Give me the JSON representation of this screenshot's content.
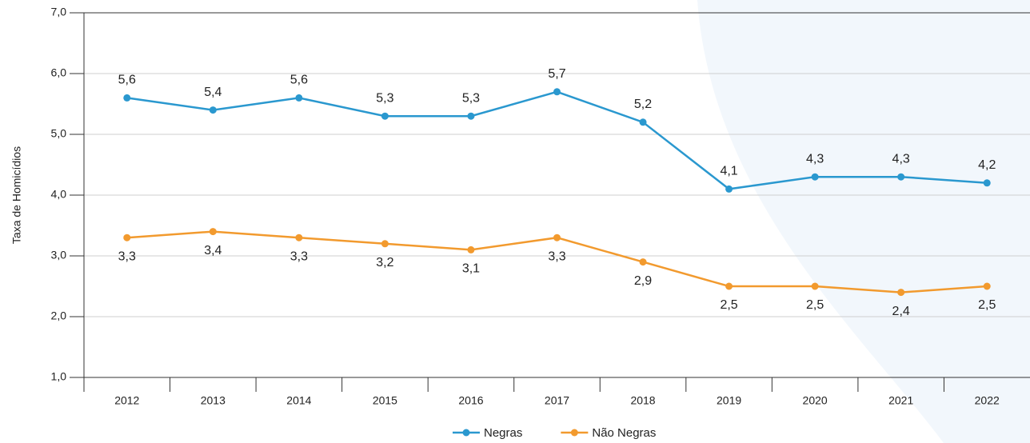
{
  "chart_data": {
    "type": "line",
    "y_label": "Taxa de Homicídios",
    "categories": [
      "2012",
      "2013",
      "2014",
      "2015",
      "2016",
      "2017",
      "2018",
      "2019",
      "2020",
      "2021",
      "2022"
    ],
    "series": [
      {
        "name": "Negras",
        "color": "#2a98cf",
        "values": [
          5.6,
          5.4,
          5.6,
          5.3,
          5.3,
          5.7,
          5.2,
          4.1,
          4.3,
          4.3,
          4.2
        ],
        "value_labels": [
          "5,6",
          "5,4",
          "5,6",
          "5,3",
          "5,3",
          "5,7",
          "5,2",
          "4,1",
          "4,3",
          "4,3",
          "4,2"
        ]
      },
      {
        "name": "Não Negras",
        "color": "#f29a2e",
        "values": [
          3.3,
          3.4,
          3.3,
          3.2,
          3.1,
          3.3,
          2.9,
          2.5,
          2.5,
          2.4,
          2.5
        ],
        "value_labels": [
          "3,3",
          "3,4",
          "3,3",
          "3,2",
          "3,1",
          "3,3",
          "2,9",
          "2,5",
          "2,5",
          "2,4",
          "2,5"
        ]
      }
    ],
    "ylim": [
      1,
      7
    ],
    "yticks": [
      {
        "value": 1,
        "label": "1,0"
      },
      {
        "value": 2,
        "label": "2,0"
      },
      {
        "value": 3,
        "label": "3,0"
      },
      {
        "value": 4,
        "label": "4,0"
      },
      {
        "value": 5,
        "label": "5,0"
      },
      {
        "value": 6,
        "label": "6,0"
      },
      {
        "value": 7,
        "label": "7,0"
      }
    ],
    "grid": true,
    "legend": "bottom"
  }
}
